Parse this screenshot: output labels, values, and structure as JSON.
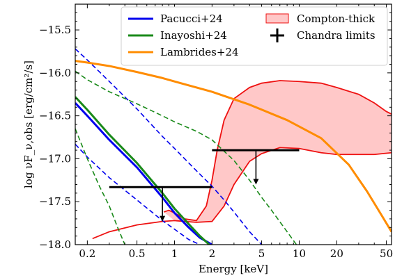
{
  "chart_data": {
    "type": "line",
    "xlabel": "Energy [keV]",
    "ylabel": "log νF_ν,obs [erg/cm²/s]",
    "xscale": "log",
    "xlim": [
      0.16,
      55
    ],
    "ylim": [
      -18.0,
      -15.2
    ],
    "x_ticks": [
      0.2,
      0.5,
      1,
      2,
      5,
      10,
      20,
      50
    ],
    "y_ticks": [
      -18.0,
      -17.5,
      -17.0,
      -16.5,
      -16.0,
      -15.5
    ],
    "legend_position": "top-right",
    "colors": {
      "pacucci": "#0000ee",
      "inayoshi": "#1a8a1a",
      "lambrides": "#ff8c00",
      "compton_edge": "#ee1111",
      "compton_fill": "#ffc8c8",
      "chandra": "#000000"
    },
    "legend": [
      {
        "label": "Pacucci+24",
        "color": "#0000ee",
        "marker": "line"
      },
      {
        "label": "Inayoshi+24",
        "color": "#1a8a1a",
        "marker": "line"
      },
      {
        "label": "Lambrides+24",
        "color": "#ff8c00",
        "marker": "line"
      },
      {
        "label": "Compton-thick",
        "color": "#ffc8c8",
        "marker": "patch"
      },
      {
        "label": "Chandra limits",
        "color": "#000000",
        "marker": "plus"
      }
    ],
    "series": [
      {
        "name": "Pacucci+24",
        "color": "#0000ee",
        "style": "solid",
        "width": 3,
        "x": [
          0.16,
          0.2,
          0.3,
          0.5,
          0.8,
          1.0,
          1.3,
          1.6,
          2.0
        ],
        "y": [
          -16.35,
          -16.5,
          -16.78,
          -17.1,
          -17.45,
          -17.63,
          -17.8,
          -17.92,
          -18.0
        ]
      },
      {
        "name": "Pacucci+24 upper",
        "color": "#0000ee",
        "style": "dashed",
        "width": 1.6,
        "x": [
          0.16,
          0.2,
          0.3,
          0.5,
          0.8,
          1.0,
          1.5,
          2.0,
          2.5,
          3.0,
          4.0,
          5.0
        ],
        "y": [
          -15.72,
          -15.85,
          -16.1,
          -16.42,
          -16.74,
          -16.88,
          -17.14,
          -17.32,
          -17.48,
          -17.62,
          -17.85,
          -18.0
        ]
      },
      {
        "name": "Pacucci+24 lower",
        "color": "#0000ee",
        "style": "dashed",
        "width": 1.6,
        "x": [
          0.16,
          0.2,
          0.3,
          0.5,
          0.8,
          1.0,
          1.3,
          1.6
        ],
        "y": [
          -16.83,
          -16.98,
          -17.22,
          -17.48,
          -17.72,
          -17.82,
          -17.94,
          -18.0
        ]
      },
      {
        "name": "Inayoshi+24",
        "color": "#1a8a1a",
        "style": "solid",
        "width": 3,
        "x": [
          0.16,
          0.2,
          0.3,
          0.5,
          0.8,
          1.0,
          1.3,
          1.6,
          1.9
        ],
        "y": [
          -16.28,
          -16.43,
          -16.72,
          -17.05,
          -17.4,
          -17.58,
          -17.76,
          -17.9,
          -18.0
        ]
      },
      {
        "name": "Inayoshi+24 upper",
        "color": "#1a8a1a",
        "style": "dashed",
        "width": 1.6,
        "x": [
          0.16,
          0.2,
          0.3,
          0.5,
          0.8,
          1.0,
          1.5,
          2.0,
          3.0,
          4.0,
          5.0,
          6.0,
          8.0,
          9.5
        ],
        "y": [
          -15.98,
          -16.08,
          -16.22,
          -16.36,
          -16.5,
          -16.57,
          -16.68,
          -16.78,
          -17.02,
          -17.25,
          -17.45,
          -17.6,
          -17.85,
          -18.0
        ]
      },
      {
        "name": "Inayoshi+24 lower",
        "color": "#1a8a1a",
        "style": "dashed",
        "width": 1.6,
        "x": [
          0.16,
          0.2,
          0.25,
          0.3,
          0.35,
          0.4
        ],
        "y": [
          -16.65,
          -17.0,
          -17.32,
          -17.55,
          -17.8,
          -18.0
        ]
      },
      {
        "name": "Lambrides+24",
        "color": "#ff8c00",
        "style": "solid",
        "width": 3,
        "x": [
          0.16,
          0.2,
          0.3,
          0.5,
          0.8,
          1.0,
          2.0,
          4.0,
          8.0,
          15.0,
          25.0,
          35.0,
          45.0,
          55.0
        ],
        "y": [
          -15.86,
          -15.88,
          -15.92,
          -15.99,
          -16.06,
          -16.1,
          -16.22,
          -16.37,
          -16.55,
          -16.76,
          -17.07,
          -17.38,
          -17.64,
          -17.85
        ]
      }
    ],
    "compton_thick_band": {
      "upper": {
        "x": [
          0.82,
          0.9,
          1.0,
          1.2,
          1.5,
          1.8,
          2.0,
          2.2,
          2.5,
          3.0,
          4.0,
          5.0,
          7.0,
          10.0,
          15.0,
          20.0,
          30.0,
          40.0,
          50.0,
          55.0
        ],
        "y": [
          -17.62,
          -17.6,
          -17.63,
          -17.7,
          -17.72,
          -17.55,
          -17.25,
          -16.9,
          -16.55,
          -16.3,
          -16.17,
          -16.12,
          -16.09,
          -16.1,
          -16.12,
          -16.17,
          -16.25,
          -16.35,
          -16.45,
          -16.48
        ]
      },
      "lower": {
        "x": [
          0.22,
          0.3,
          0.5,
          0.8,
          1.0,
          1.2,
          1.5,
          2.0,
          2.5,
          3.0,
          4.0,
          5.0,
          7.0,
          10.0,
          15.0,
          20.0,
          30.0,
          40.0,
          55.0
        ],
        "y": [
          -17.93,
          -17.85,
          -17.77,
          -17.73,
          -17.72,
          -17.73,
          -17.74,
          -17.73,
          -17.55,
          -17.3,
          -17.03,
          -16.94,
          -16.87,
          -16.88,
          -16.93,
          -16.95,
          -16.95,
          -16.95,
          -16.93
        ]
      }
    },
    "chandra_limits": [
      {
        "x": 0.8,
        "y": -17.33,
        "x_low": 0.3,
        "x_high": 2.0,
        "y_arrow_to": -17.73
      },
      {
        "x": 4.5,
        "y": -16.9,
        "x_low": 2.0,
        "x_high": 10.0,
        "y_arrow_to": -17.3
      }
    ]
  }
}
